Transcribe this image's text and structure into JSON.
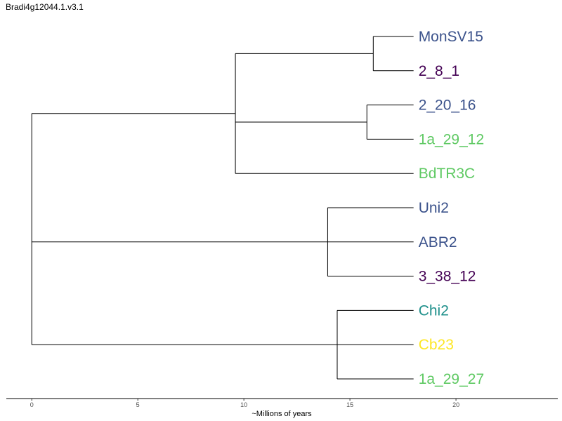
{
  "title": "Bradi4g12044.1.v3.1",
  "axis": {
    "label": "~Millions of years",
    "ticks": [
      0,
      5,
      10,
      15,
      20
    ],
    "range": [
      -1.2,
      24.8
    ]
  },
  "leaves": [
    {
      "name": "MonSV15",
      "color": "#3b528b"
    },
    {
      "name": "2_8_1",
      "color": "#440154"
    },
    {
      "name": "2_20_16",
      "color": "#3b528b"
    },
    {
      "name": "1a_29_12",
      "color": "#5ec962"
    },
    {
      "name": "BdTR3C",
      "color": "#5ec962"
    },
    {
      "name": "Uni2",
      "color": "#3b528b"
    },
    {
      "name": "ABR2",
      "color": "#3b528b"
    },
    {
      "name": "3_38_12",
      "color": "#440154"
    },
    {
      "name": "Chi2",
      "color": "#21918c"
    },
    {
      "name": "Cb23",
      "color": "#fde725"
    },
    {
      "name": "1a_29_27",
      "color": "#5ec962"
    }
  ],
  "tree": {
    "depth": 0,
    "children": [
      {
        "depth": 9.6,
        "children": [
          {
            "depth": 16.1,
            "children": [
              {
                "leaf": "MonSV15",
                "depth": 18.0
              },
              {
                "leaf": "2_8_1",
                "depth": 18.0
              }
            ]
          },
          {
            "depth": 15.8,
            "children": [
              {
                "leaf": "2_20_16",
                "depth": 18.0
              },
              {
                "leaf": "1a_29_12",
                "depth": 18.0
              }
            ]
          },
          {
            "leaf": "BdTR3C",
            "depth": 18.0
          }
        ]
      },
      {
        "depth": 13.95,
        "children": [
          {
            "leaf": "Uni2",
            "depth": 18.0
          },
          {
            "leaf": "ABR2",
            "depth": 18.0
          },
          {
            "leaf": "3_38_12",
            "depth": 18.0
          }
        ]
      },
      {
        "depth": 14.4,
        "children": [
          {
            "leaf": "Chi2",
            "depth": 18.0
          },
          {
            "leaf": "Cb23",
            "depth": 18.0
          },
          {
            "leaf": "1a_29_27",
            "depth": 18.0
          }
        ]
      }
    ]
  }
}
